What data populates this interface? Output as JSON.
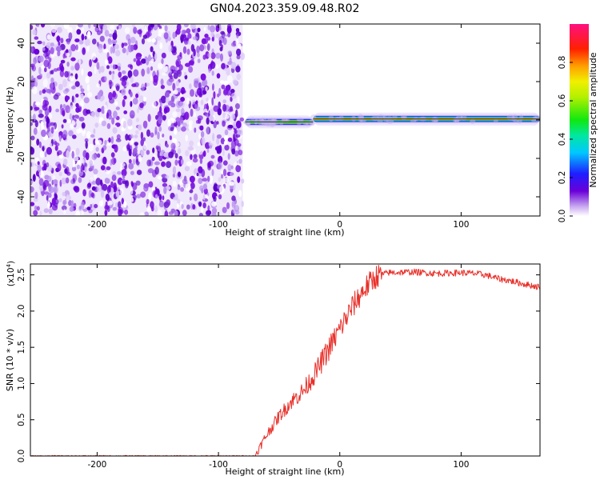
{
  "title": "GN04.2023.359.09.48.R02",
  "colors": {
    "signal_line": "#e8302a",
    "noise_purple": "#6a00d8",
    "axis": "#000000"
  },
  "colorbar": {
    "label": "Normalized spectral amplitude",
    "range": [
      0.0,
      1.0
    ],
    "ticks": [
      "0.0",
      "0.2",
      "0.4",
      "0.6",
      "0.8"
    ],
    "colormap": "rainbow (white-violet-blue-cyan-green-yellow-orange-red-magenta)"
  },
  "chart_data": [
    {
      "type": "heatmap",
      "name": "spectrogram",
      "xlabel": "Height of straight line (km)",
      "ylabel": "Frequency (Hz)",
      "xlim": [
        -255,
        165
      ],
      "ylim": [
        -50,
        50
      ],
      "xticks": [
        "-200",
        "-100",
        "0",
        "100"
      ],
      "yticks": [
        "-40",
        "-20",
        "0",
        "20",
        "40"
      ],
      "grid": false,
      "noise_region_x": [
        -255,
        -80
      ],
      "signal_band": [
        {
          "x_start": -78,
          "x_end": -22,
          "freq": -1,
          "amplitude": 0.95
        },
        {
          "x_start": -22,
          "x_end": 165,
          "freq": 0.5,
          "amplitude": 0.95
        }
      ]
    },
    {
      "type": "line",
      "name": "snr",
      "xlabel": "Height of straight line (km)",
      "ylabel": "SNR (10 * v/v)",
      "ylabel_multiplier": "(x10",
      "ylabel_multiplier_exp": "4",
      "ylabel_multiplier_close": ")",
      "xlim": [
        -255,
        165
      ],
      "ylim": [
        0,
        2.65
      ],
      "xticks": [
        "-200",
        "-100",
        "0",
        "100"
      ],
      "yticks": [
        "0.0",
        "0.5",
        "1.0",
        "1.5",
        "2.0",
        "2.5"
      ],
      "grid": false,
      "x": [
        -255,
        -100,
        -70,
        -60,
        -50,
        -40,
        -30,
        -20,
        -10,
        0,
        10,
        20,
        30,
        40,
        60,
        80,
        100,
        110,
        120,
        130,
        140,
        150,
        165
      ],
      "y": [
        0.0,
        0.0,
        0.0,
        0.3,
        0.55,
        0.75,
        0.9,
        1.15,
        1.45,
        1.75,
        2.05,
        2.3,
        2.48,
        2.53,
        2.54,
        2.52,
        2.53,
        2.52,
        2.5,
        2.45,
        2.42,
        2.38,
        2.33
      ]
    }
  ]
}
